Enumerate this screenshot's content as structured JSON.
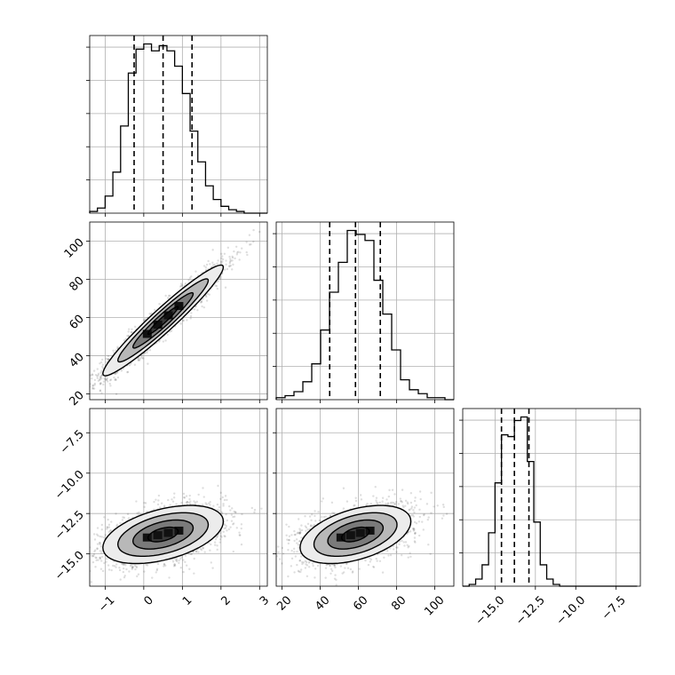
{
  "chart_data": {
    "type": "corner",
    "grid": true,
    "parameters": [
      {
        "range": [
          -1.4,
          3.2
        ],
        "ticks": [
          -1,
          0,
          1,
          2,
          3
        ],
        "tick_labels": [
          "−1",
          "0",
          "1",
          "2",
          "3"
        ],
        "quantiles": [
          -0.25,
          0.5,
          1.25
        ],
        "hist_edges": [
          -1.4,
          -1.2,
          -1.0,
          -0.8,
          -0.6,
          -0.4,
          -0.2,
          0.0,
          0.2,
          0.4,
          0.6,
          0.8,
          1.0,
          1.2,
          1.4,
          1.6,
          1.8,
          2.0,
          2.2,
          2.4,
          2.6,
          2.8,
          3.0,
          3.2
        ],
        "hist_counts": [
          1,
          3,
          10,
          24,
          51,
          82,
          96,
          99,
          95,
          98,
          95,
          86,
          70,
          48,
          30,
          16,
          8,
          4,
          2,
          1,
          0,
          0,
          0
        ]
      },
      {
        "range": [
          17,
          110
        ],
        "ticks": [
          20,
          40,
          60,
          80,
          100
        ],
        "tick_labels": [
          "20",
          "40",
          "60",
          "80",
          "100"
        ],
        "quantiles": [
          45,
          58.5,
          71.5
        ],
        "hist_edges": [
          17,
          21.65,
          26.3,
          30.95,
          35.6,
          40.25,
          44.9,
          49.55,
          54.2,
          58.85,
          63.5,
          68.15,
          72.8,
          77.45,
          82.1,
          86.75,
          91.4,
          96.05,
          100.7,
          105.35,
          110
        ],
        "hist_counts": [
          1,
          2,
          4,
          9,
          18,
          35,
          54,
          69,
          85,
          83,
          80,
          60,
          43,
          25,
          10,
          5,
          3,
          1,
          1,
          0
        ]
      },
      {
        "range": [
          -17,
          -6
        ],
        "ticks": [
          -15,
          -12.5,
          -10,
          -7.5
        ],
        "tick_labels": [
          "−15.0",
          "−12.5",
          "−10.0",
          "−7.5"
        ],
        "axis_tick_labels": [
          "−15.0",
          "−12.5",
          "−10.0",
          "−7.5"
        ],
        "quantiles": [
          -14.6,
          -13.8,
          -12.9
        ],
        "hist_edges": [
          -17.0,
          -16.6,
          -16.2,
          -15.8,
          -15.4,
          -15.0,
          -14.6,
          -14.2,
          -13.8,
          -13.4,
          -13.0,
          -12.6,
          -12.2,
          -11.8,
          -11.4,
          -11.0,
          -10.6,
          -10.2,
          -9.8,
          -9.4,
          -9.0,
          -8.6,
          -8.2,
          -7.8,
          -7.4,
          -7.0,
          -6.6,
          -6.2
        ],
        "hist_counts": [
          0,
          1,
          4,
          12,
          30,
          58,
          85,
          84,
          93,
          95,
          70,
          36,
          12,
          4,
          1,
          0,
          0,
          0,
          0,
          0,
          0,
          0,
          0,
          0,
          0,
          0,
          0
        ]
      }
    ],
    "pairs": [
      {
        "x": 0,
        "y": 1,
        "mean": [
          0.5,
          58.5
        ],
        "sd": [
          0.78,
          14.5
        ],
        "corr": 0.96
      },
      {
        "x": 0,
        "y": 2,
        "mean": [
          0.5,
          -13.8
        ],
        "sd": [
          0.78,
          0.9
        ],
        "corr": 0.45
      },
      {
        "x": 1,
        "y": 2,
        "mean": [
          58.5,
          -13.8
        ],
        "sd": [
          14.5,
          0.9
        ],
        "corr": 0.45
      }
    ]
  }
}
